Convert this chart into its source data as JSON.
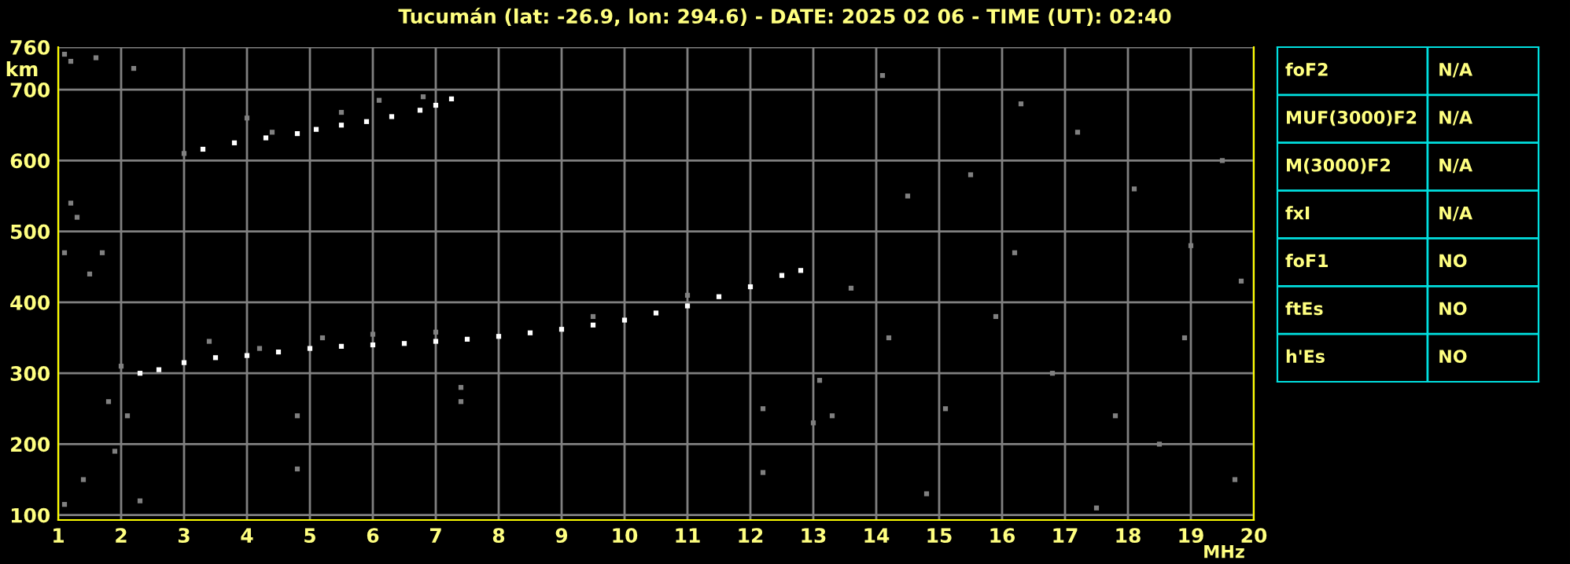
{
  "chart_data": [
    {
      "type": "scatter",
      "title": "Tucumán (lat: -26.9, lon: 294.6) - DATE: 2025 02 06 - TIME (UT): 02:40",
      "xlabel": "MHz",
      "ylabel": "km",
      "xlim": [
        1,
        20
      ],
      "ylim": [
        93,
        760
      ],
      "xticks": [
        1,
        2,
        3,
        4,
        5,
        6,
        7,
        8,
        9,
        10,
        11,
        12,
        13,
        14,
        15,
        16,
        17,
        18,
        19,
        20
      ],
      "yticks": [
        100,
        200,
        300,
        400,
        500,
        600,
        700,
        760
      ],
      "grid": true,
      "marker": "square",
      "series": [
        {
          "color": "#ffffff",
          "x": [
            2.3,
            2.6,
            3.0,
            3.5,
            4.0,
            4.5,
            5.0,
            5.5,
            6.0,
            6.5,
            7.0,
            7.5,
            8.0,
            8.5,
            9.0,
            9.5,
            10.0,
            10.5,
            11.0,
            11.5,
            12.0,
            12.5,
            12.8,
            3.3,
            3.8,
            4.3,
            4.8,
            5.1,
            5.5,
            5.9,
            6.3,
            6.75,
            7.0,
            7.25
          ],
          "values": [
            300,
            305,
            315,
            322,
            325,
            330,
            335,
            338,
            340,
            342,
            345,
            348,
            352,
            357,
            362,
            368,
            375,
            385,
            395,
            408,
            422,
            438,
            445,
            616,
            625,
            632,
            638,
            644,
            650,
            655,
            662,
            671,
            678,
            687
          ]
        },
        {
          "color": "#808080",
          "x": [
            1.1,
            1.2,
            1.6,
            2.2,
            1.2,
            1.3,
            1.1,
            1.5,
            1.7,
            2.0,
            1.8,
            2.1,
            1.9,
            1.4,
            1.1,
            2.3,
            3.0,
            4.4,
            6.1,
            7.4,
            7.4,
            4.8,
            4.8,
            12.2,
            12.2,
            13.0,
            13.1,
            13.3,
            14.1,
            14.5,
            15.5,
            16.3,
            17.2,
            18.1,
            19.0,
            19.5,
            16.8,
            15.1,
            18.5,
            19.7,
            14.8,
            17.5,
            13.6,
            15.9,
            18.9,
            19.8,
            16.2,
            14.2,
            17.8,
            3.4,
            4.2,
            5.2,
            6.0,
            7.0,
            9.5,
            11.0,
            4.0,
            5.5,
            6.8
          ],
          "values": [
            750,
            740,
            745,
            730,
            540,
            520,
            470,
            440,
            470,
            310,
            260,
            240,
            190,
            150,
            115,
            120,
            610,
            640,
            685,
            280,
            260,
            240,
            165,
            160,
            250,
            230,
            290,
            240,
            720,
            550,
            580,
            680,
            640,
            560,
            480,
            600,
            300,
            250,
            200,
            150,
            130,
            110,
            420,
            380,
            350,
            430,
            470,
            350,
            240,
            345,
            335,
            350,
            355,
            358,
            380,
            410,
            660,
            668,
            690
          ]
        }
      ]
    },
    {
      "type": "other",
      "annotations": [
        "foF2",
        "N/A",
        "MUF(3000)F2",
        "N/A",
        "M(3000)F2",
        "N/A",
        "fxI",
        "N/A",
        "foF1",
        "NO",
        "ftEs",
        "NO",
        "h'Es",
        "NO"
      ]
    }
  ]
}
